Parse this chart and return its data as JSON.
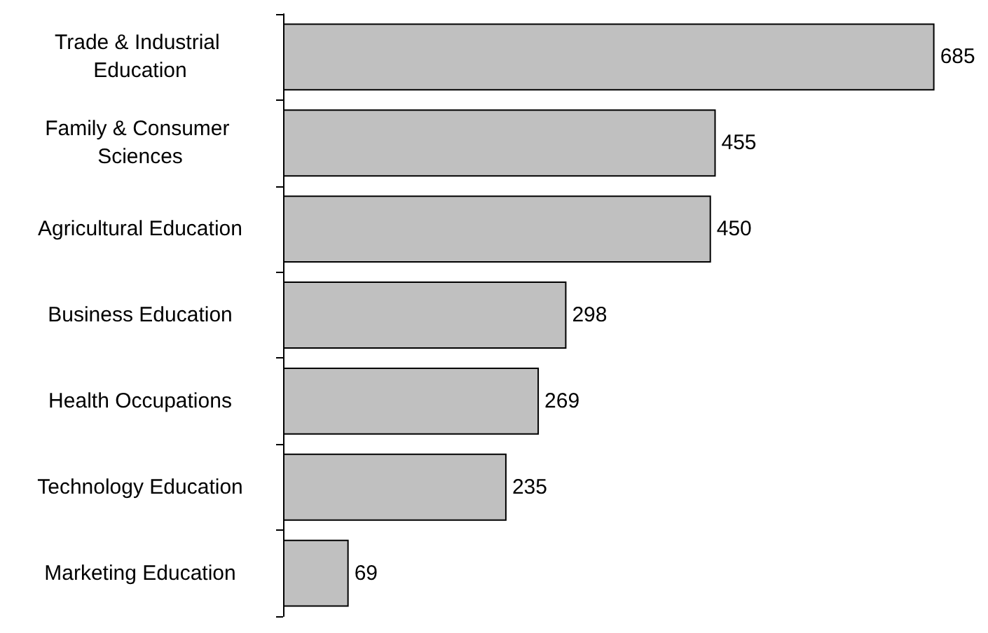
{
  "chart_data": {
    "type": "bar",
    "orientation": "horizontal",
    "data_labels": true,
    "categories": [
      "Trade & Industrial Education",
      "Family & Consumer Sciences",
      "Agricultural Education",
      "Business Education",
      "Health Occupations",
      "Technology Education",
      "Marketing Education"
    ],
    "values": [
      685,
      455,
      450,
      298,
      269,
      235,
      69
    ],
    "color": "#c0c0c0"
  }
}
